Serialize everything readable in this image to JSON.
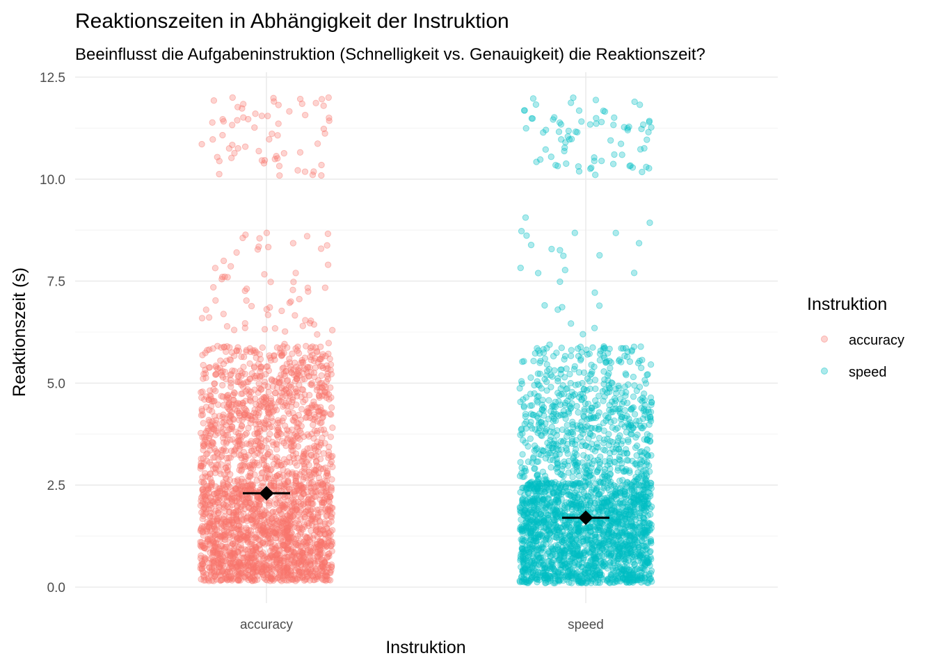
{
  "chart_data": {
    "type": "scatter",
    "title": "Reaktionszeiten in Abhängigkeit der Instruktion",
    "subtitle": "Beeinflusst die Aufgabeninstruktion (Schnelligkeit vs. Genauigkeit) die Reaktionszeit?",
    "xlabel": "Instruktion",
    "ylabel": "Reaktionszeit (s)",
    "categories": [
      "accuracy",
      "speed"
    ],
    "ylim": [
      0,
      12.5
    ],
    "yticks": [
      0,
      2.5,
      5,
      7.5,
      10,
      12.5
    ],
    "ytick_labels": [
      "0.0",
      "2.5",
      "5.0",
      "7.5",
      "10.0",
      "12.5"
    ],
    "grid": true,
    "legend": {
      "title": "Instruktion",
      "position": "right",
      "entries": [
        "accuracy",
        "speed"
      ]
    },
    "series": [
      {
        "name": "accuracy",
        "color": "#F8766D",
        "mean": 2.3,
        "ci": [
          2.22,
          2.38
        ],
        "distribution": [
          {
            "range": [
              0.15,
              2.5
            ],
            "share": 0.58
          },
          {
            "range": [
              2.5,
              4.8
            ],
            "share": 0.27
          },
          {
            "range": [
              4.8,
              5.9
            ],
            "share": 0.1
          },
          {
            "range": [
              5.9,
              8.7
            ],
            "share": 0.025
          },
          {
            "range": [
              10.0,
              12.0
            ],
            "share": 0.025
          }
        ]
      },
      {
        "name": "speed",
        "color": "#00BFC4",
        "mean": 1.7,
        "ci": [
          1.64,
          1.76
        ],
        "distribution": [
          {
            "range": [
              0.1,
              2.6
            ],
            "share": 0.7
          },
          {
            "range": [
              2.6,
              4.6
            ],
            "share": 0.19
          },
          {
            "range": [
              4.6,
              5.9
            ],
            "share": 0.07
          },
          {
            "range": [
              5.9,
              9.2
            ],
            "share": 0.01
          },
          {
            "range": [
              10.1,
              12.0
            ],
            "share": 0.03
          }
        ]
      }
    ],
    "summary_marker": "diamond with horizontal error bar, black"
  }
}
